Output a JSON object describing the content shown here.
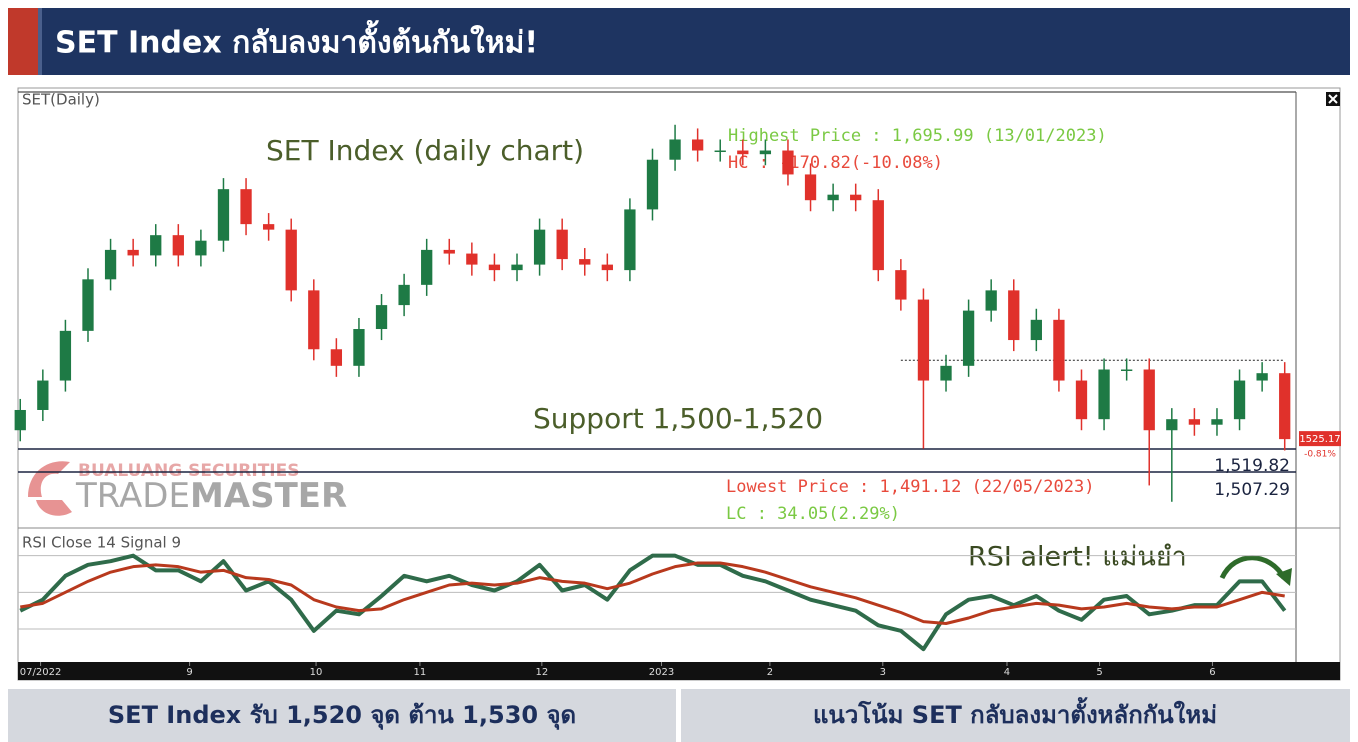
{
  "header": {
    "title": "SET Index กลับลงมาตั้งต้นกันใหม่!"
  },
  "chart_data": {
    "type": "candlestick",
    "panel_label": "SET(Daily)",
    "title": "SET Index (daily chart)",
    "x": [
      0,
      1,
      2,
      3,
      4,
      5,
      6,
      7,
      8,
      9,
      10,
      11,
      12,
      13,
      14,
      15,
      16,
      17,
      18,
      19,
      20,
      21,
      22,
      23,
      24,
      25,
      26,
      27,
      28,
      29,
      30,
      31,
      32,
      33,
      34,
      35,
      36,
      37,
      38,
      39,
      40,
      41,
      42,
      43,
      44,
      45,
      46,
      47,
      48,
      49,
      50,
      51,
      52,
      53,
      54,
      55,
      56
    ],
    "open": [
      1530,
      1541,
      1557,
      1584,
      1612,
      1628,
      1625,
      1636,
      1625,
      1633,
      1661,
      1642,
      1639,
      1606,
      1574,
      1565,
      1585,
      1598,
      1609,
      1628,
      1626,
      1620,
      1617,
      1620,
      1639,
      1623,
      1620,
      1617,
      1650,
      1677,
      1688,
      1682,
      1682,
      1680,
      1682,
      1669,
      1655,
      1658,
      1655,
      1617,
      1601,
      1557,
      1565,
      1595,
      1606,
      1579,
      1590,
      1557,
      1536,
      1563,
      1563,
      1530,
      1536,
      1533,
      1536,
      1557,
      1561
    ],
    "high": [
      1547,
      1563,
      1590,
      1618,
      1634,
      1634,
      1642,
      1642,
      1639,
      1667,
      1667,
      1648,
      1645,
      1612,
      1580,
      1591,
      1604,
      1615,
      1634,
      1634,
      1632,
      1626,
      1626,
      1645,
      1645,
      1629,
      1626,
      1656,
      1683,
      1695.99,
      1694,
      1688,
      1688,
      1688,
      1688,
      1675,
      1664,
      1664,
      1661,
      1623,
      1607,
      1571,
      1601,
      1612,
      1612,
      1596,
      1596,
      1563,
      1569,
      1569,
      1569,
      1542,
      1542,
      1542,
      1563,
      1567,
      1567
    ],
    "low": [
      1524,
      1535,
      1551,
      1578,
      1606,
      1619,
      1619,
      1619,
      1619,
      1627,
      1636,
      1633,
      1600,
      1568,
      1559,
      1559,
      1579,
      1592,
      1603,
      1620,
      1614,
      1611,
      1611,
      1614,
      1617,
      1614,
      1611,
      1611,
      1644,
      1671,
      1676,
      1676,
      1674,
      1674,
      1663,
      1649,
      1649,
      1649,
      1611,
      1595,
      1520,
      1551,
      1559,
      1589,
      1573,
      1573,
      1551,
      1530,
      1530,
      1557,
      1500,
      1491.12,
      1527,
      1527,
      1530,
      1551,
      1519
    ],
    "close": [
      1541,
      1557,
      1584,
      1612,
      1628,
      1625,
      1636,
      1625,
      1633,
      1661,
      1642,
      1639,
      1606,
      1574,
      1565,
      1585,
      1598,
      1609,
      1628,
      1626,
      1620,
      1617,
      1620,
      1639,
      1623,
      1620,
      1617,
      1650,
      1677,
      1688,
      1682,
      1682,
      1680,
      1682,
      1669,
      1655,
      1658,
      1655,
      1617,
      1601,
      1557,
      1565,
      1595,
      1606,
      1579,
      1590,
      1557,
      1536,
      1563,
      1563,
      1530,
      1536,
      1533,
      1536,
      1557,
      1561,
      1525.17
    ],
    "up_color": "#1e7a45",
    "down_color": "#e0312b",
    "xlim": [
      -0.1,
      56.5
    ],
    "ylim": [
      1478.5,
      1713.8
    ],
    "xticks": [
      {
        "value": 0.9,
        "label": "07/2022"
      },
      {
        "value": 7.5,
        "label": "9"
      },
      {
        "value": 13.1,
        "label": "10"
      },
      {
        "value": 17.7,
        "label": "11"
      },
      {
        "value": 23.1,
        "label": "12"
      },
      {
        "value": 28.4,
        "label": "2023"
      },
      {
        "value": 33.2,
        "label": "2"
      },
      {
        "value": 38.2,
        "label": "3"
      },
      {
        "value": 43.7,
        "label": "4"
      },
      {
        "value": 47.8,
        "label": "5"
      },
      {
        "value": 52.8,
        "label": "6"
      }
    ],
    "support_lines": [
      {
        "value": 1519.82,
        "label": "1,519.82"
      },
      {
        "value": 1507.29,
        "label": "1,507.29"
      }
    ],
    "support_label": "Support 1,500-1,520",
    "dotted_line": {
      "value": 1568,
      "x": [
        39,
        56
      ]
    },
    "price_tag": 1525.17,
    "change_label": "-0.81%",
    "annotations": {
      "highest": "Highest Price : 1,695.99 (13/01/2023)",
      "hc": "HC : -170.82(-10.08%)",
      "lowest": "Lowest Price : 1,491.12 (22/05/2023)",
      "lc": "LC : 34.05(2.29%)"
    },
    "rsi": {
      "type": "line",
      "label": "RSI Close 14 Signal 9",
      "ylim": [
        12,
        84
      ],
      "levels": [
        30,
        50,
        70
      ],
      "series": [
        {
          "color": "#2f6b4a",
          "values": [
            40,
            46,
            59,
            65,
            67,
            70,
            62,
            62,
            56,
            67,
            51,
            56,
            46,
            29,
            40,
            38,
            48,
            59,
            56,
            59,
            54,
            51,
            56,
            65,
            51,
            54,
            46,
            62,
            70,
            70,
            65,
            65,
            59,
            56,
            51,
            46,
            43,
            40,
            32,
            29,
            19,
            38,
            46,
            48,
            43,
            48,
            40,
            35,
            46,
            48,
            38,
            40,
            43,
            43,
            56,
            56,
            40
          ]
        },
        {
          "color": "#b8391d",
          "values": [
            42,
            44,
            50,
            56,
            61,
            64,
            65,
            64,
            61,
            62,
            58,
            57,
            54,
            46,
            42,
            40,
            41,
            46,
            50,
            54,
            55,
            54,
            55,
            58,
            56,
            55,
            52,
            55,
            60,
            64,
            66,
            66,
            64,
            61,
            57,
            53,
            50,
            47,
            43,
            39,
            34,
            33,
            36,
            40,
            42,
            44,
            43,
            41,
            42,
            44,
            42,
            41,
            42,
            42,
            46,
            50,
            48
          ]
        }
      ],
      "annotation": "RSI alert! แม่นยำ"
    }
  },
  "watermark": {
    "company": "BUALUANG SECURITIES",
    "brand_1": "TRADE",
    "brand_2": "MASTER"
  },
  "footer": {
    "left": "SET Index รับ 1,520 จุด ต้าน 1,530 จุด",
    "right": "แนวโน้ม SET กลับลงมาตั้งหลักกันใหม่"
  }
}
